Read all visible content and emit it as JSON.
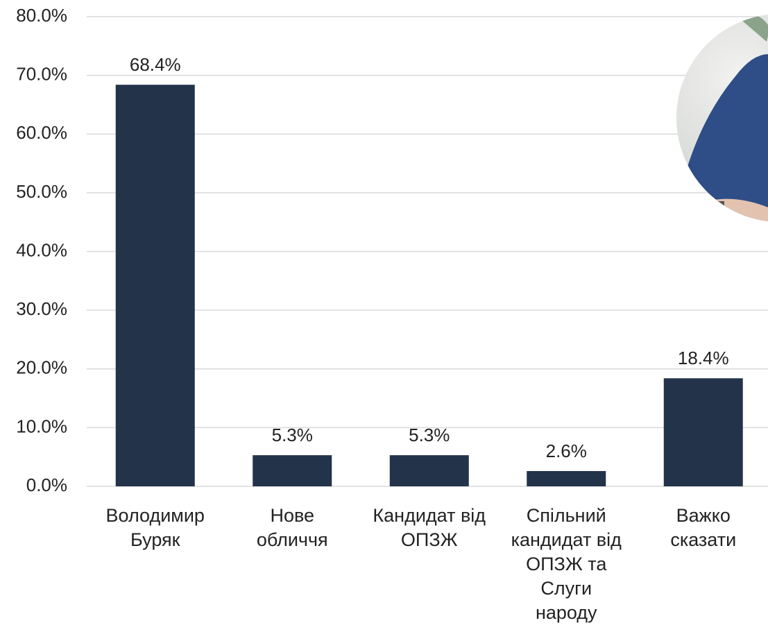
{
  "chart_data": {
    "type": "bar",
    "categories": [
      "Володимир\nБуряк",
      "Нове\nобличчя",
      "Кандидат від\nОПЗЖ",
      "Спільний\nкандидат від\nОПЗЖ та\nСлуги\nнароду",
      "Важко\nсказати"
    ],
    "values": [
      68.4,
      5.3,
      5.3,
      2.6,
      18.4
    ],
    "value_labels": [
      "68.4%",
      "5.3%",
      "5.3%",
      "2.6%",
      "18.4%"
    ],
    "color": "#22334a",
    "ylim": [
      0,
      80
    ],
    "yticks": [
      {
        "value": 0,
        "label": "0.0%"
      },
      {
        "value": 10,
        "label": "10.0%"
      },
      {
        "value": 20,
        "label": "20.0%"
      },
      {
        "value": 30,
        "label": "30.0%"
      },
      {
        "value": 40,
        "label": "40.0%"
      },
      {
        "value": 50,
        "label": "50.0%"
      },
      {
        "value": 60,
        "label": "60.0%"
      },
      {
        "value": 70,
        "label": "70.0%"
      },
      {
        "value": 80,
        "label": "80.0%"
      }
    ],
    "grid": true
  }
}
